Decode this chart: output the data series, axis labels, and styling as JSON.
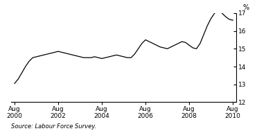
{
  "title": "",
  "ylabel": "%",
  "source_text": "Source: Labour Force Survey.",
  "xlim": [
    2000.42,
    2010.75
  ],
  "ylim": [
    12,
    17
  ],
  "yticks": [
    12,
    13,
    14,
    15,
    16,
    17
  ],
  "xtick_years": [
    2000,
    2002,
    2004,
    2006,
    2008,
    2010
  ],
  "line_color": "#000000",
  "line_width": 0.9,
  "background_color": "#ffffff",
  "data_x": [
    2000.583,
    2000.75,
    2000.917,
    2001.083,
    2001.25,
    2001.417,
    2001.583,
    2001.75,
    2001.917,
    2002.083,
    2002.25,
    2002.417,
    2002.583,
    2002.75,
    2002.917,
    2003.083,
    2003.25,
    2003.417,
    2003.583,
    2003.75,
    2003.917,
    2004.083,
    2004.25,
    2004.417,
    2004.583,
    2004.75,
    2004.917,
    2005.083,
    2005.25,
    2005.417,
    2005.583,
    2005.75,
    2005.917,
    2006.083,
    2006.25,
    2006.417,
    2006.583,
    2006.75,
    2006.917,
    2007.083,
    2007.25,
    2007.417,
    2007.583,
    2007.75,
    2007.917,
    2008.083,
    2008.25,
    2008.417,
    2008.583,
    2008.75,
    2008.917,
    2009.083,
    2009.25,
    2009.417,
    2009.583,
    2009.75,
    2009.917,
    2010.083,
    2010.25,
    2010.417,
    2010.583
  ],
  "data_y": [
    13.05,
    13.3,
    13.65,
    14.0,
    14.3,
    14.5,
    14.55,
    14.6,
    14.65,
    14.7,
    14.75,
    14.8,
    14.85,
    14.8,
    14.75,
    14.7,
    14.65,
    14.6,
    14.55,
    14.5,
    14.5,
    14.5,
    14.55,
    14.5,
    14.45,
    14.5,
    14.55,
    14.6,
    14.65,
    14.6,
    14.55,
    14.5,
    14.5,
    14.7,
    15.0,
    15.3,
    15.5,
    15.4,
    15.3,
    15.2,
    15.1,
    15.05,
    15.0,
    15.1,
    15.2,
    15.3,
    15.4,
    15.35,
    15.2,
    15.05,
    15.0,
    15.3,
    15.8,
    16.3,
    16.7,
    17.0,
    17.1,
    17.0,
    16.8,
    16.65,
    16.6
  ]
}
